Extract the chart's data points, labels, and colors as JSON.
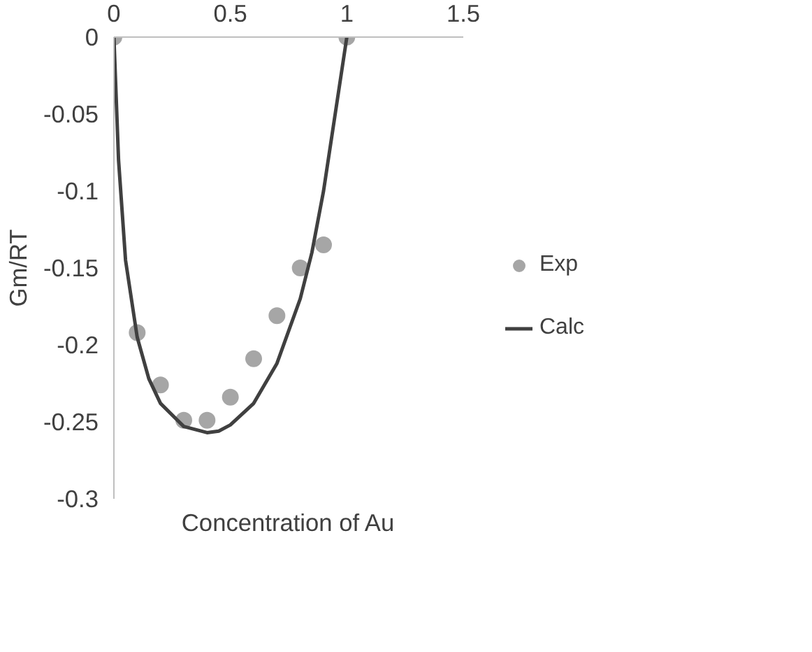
{
  "chart_data": {
    "type": "scatter",
    "xlabel": "Concentration of Au",
    "ylabel": "Gm/RT",
    "xlim": [
      0,
      1.5
    ],
    "xticks": [
      {
        "value": 0,
        "label": "0"
      },
      0.5,
      1,
      1.5
    ],
    "ylim": [
      -0.3,
      0
    ],
    "yticks": [
      -0.3,
      -0.25,
      -0.2,
      -0.15,
      -0.1,
      -0.05,
      0
    ],
    "grid": false,
    "legend": "right",
    "series": [
      {
        "name": "Exp",
        "marker": "circle",
        "color": "#a6a6a6",
        "x": [
          0,
          0.1,
          0.2,
          0.3,
          0.4,
          0.5,
          0.6,
          0.7,
          0.8,
          0.9,
          1
        ],
        "values": [
          0,
          -0.192,
          -0.226,
          -0.249,
          -0.249,
          -0.234,
          -0.209,
          -0.181,
          -0.15,
          -0.135,
          0
        ]
      },
      {
        "name": "Calc",
        "type": "line",
        "marker": "none",
        "color": "#404040",
        "x": [
          0,
          0.02,
          0.05,
          0.1,
          0.15,
          0.2,
          0.3,
          0.4,
          0.45,
          0.5,
          0.6,
          0.7,
          0.8,
          0.85,
          0.9,
          0.95,
          0.98,
          1
        ],
        "values": [
          0,
          -0.08,
          -0.145,
          -0.195,
          -0.222,
          -0.238,
          -0.253,
          -0.257,
          -0.256,
          -0.252,
          -0.238,
          -0.212,
          -0.17,
          -0.14,
          -0.1,
          -0.05,
          -0.02,
          0
        ]
      }
    ]
  }
}
